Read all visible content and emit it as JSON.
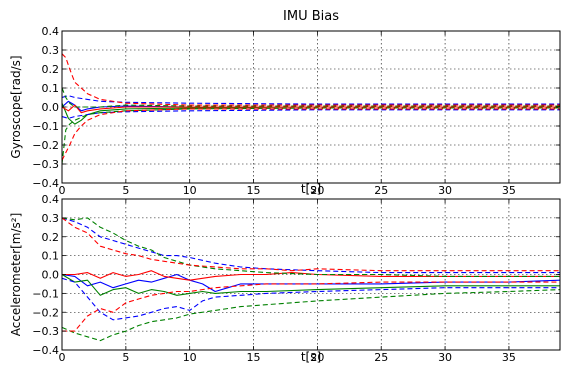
{
  "figure": {
    "title": "IMU Bias"
  },
  "colors": {
    "x_axis": "#0000ff",
    "y_axis": "#008000",
    "z_axis": "#ff0000",
    "frame": "#000000",
    "grid": "#000000"
  },
  "chart_data": [
    {
      "type": "line",
      "title": "IMU Bias",
      "xlabel": "t[s]",
      "ylabel": "Gyroscope[rad/s]",
      "xlim": [
        0,
        39
      ],
      "ylim": [
        -0.4,
        0.4
      ],
      "xticks": [
        0,
        5,
        10,
        15,
        20,
        25,
        30,
        35
      ],
      "yticks": [
        -0.4,
        -0.3,
        -0.2,
        -0.1,
        0.0,
        0.1,
        0.2,
        0.3,
        0.4
      ],
      "ytick_labels": [
        "−0.4",
        "−0.3",
        "−0.2",
        "−0.1",
        "0.0",
        "0.1",
        "0.2",
        "0.3",
        "0.4"
      ],
      "grid": true,
      "legend": "none",
      "series": [
        {
          "color": "#0000ff",
          "style": "solid",
          "x": [
            0,
            0.5,
            1,
            1.5,
            2,
            3,
            5,
            10,
            20,
            39
          ],
          "y": [
            0.0,
            0.03,
            0.01,
            -0.02,
            -0.01,
            0.0,
            0.005,
            0.0,
            0.0,
            0.0
          ]
        },
        {
          "color": "#008000",
          "style": "solid",
          "x": [
            0,
            0.5,
            1,
            1.5,
            2,
            3,
            5,
            10,
            20,
            39
          ],
          "y": [
            0.02,
            -0.06,
            -0.09,
            -0.07,
            -0.04,
            -0.02,
            -0.01,
            -0.005,
            0.0,
            0.0
          ]
        },
        {
          "color": "#ff0000",
          "style": "solid",
          "x": [
            0,
            0.5,
            1,
            1.5,
            2,
            3,
            5,
            10,
            20,
            39
          ],
          "y": [
            0.0,
            -0.02,
            0.01,
            -0.03,
            -0.02,
            -0.01,
            0.0,
            0.0,
            0.0,
            0.0
          ]
        },
        {
          "color": "#0000ff",
          "style": "dashed",
          "x": [
            0,
            0.5,
            1,
            2,
            3,
            5,
            10,
            20,
            39
          ],
          "y": [
            0.05,
            0.06,
            0.05,
            0.04,
            0.03,
            0.025,
            0.02,
            0.015,
            0.015
          ]
        },
        {
          "color": "#0000ff",
          "style": "dashed",
          "x": [
            0,
            0.5,
            1,
            2,
            3,
            5,
            10,
            20,
            39
          ],
          "y": [
            -0.05,
            -0.06,
            -0.05,
            -0.04,
            -0.03,
            -0.025,
            -0.02,
            -0.015,
            -0.015
          ]
        },
        {
          "color": "#008000",
          "style": "dashed",
          "x": [
            0,
            0.3,
            0.6,
            1,
            2,
            3,
            5,
            10,
            20,
            39
          ],
          "y": [
            0.1,
            0.05,
            0.02,
            0.0,
            0.0,
            0.0,
            0.01,
            0.005,
            0.005,
            0.005
          ]
        },
        {
          "color": "#008000",
          "style": "dashed",
          "x": [
            0,
            0.3,
            0.6,
            1,
            2,
            3,
            5,
            10,
            20,
            39
          ],
          "y": [
            -0.3,
            -0.12,
            -0.09,
            -0.07,
            -0.04,
            -0.03,
            -0.02,
            -0.01,
            -0.005,
            -0.005
          ]
        },
        {
          "color": "#ff0000",
          "style": "dashed",
          "x": [
            0,
            0.3,
            0.6,
            1,
            1.5,
            2,
            3,
            5,
            10,
            20,
            39
          ],
          "y": [
            0.28,
            0.26,
            0.2,
            0.13,
            0.1,
            0.07,
            0.04,
            0.02,
            0.01,
            0.01,
            0.01
          ]
        },
        {
          "color": "#ff0000",
          "style": "dashed",
          "x": [
            0,
            0.3,
            0.6,
            1,
            1.5,
            2,
            3,
            5,
            10,
            20,
            39
          ],
          "y": [
            -0.28,
            -0.24,
            -0.2,
            -0.14,
            -0.1,
            -0.07,
            -0.04,
            -0.02,
            -0.01,
            -0.01,
            -0.01
          ]
        }
      ]
    },
    {
      "type": "line",
      "xlabel": "t[s]",
      "ylabel": "Accelerometer[m/s²]",
      "xlim": [
        0,
        39
      ],
      "ylim": [
        -0.4,
        0.4
      ],
      "xticks": [
        0,
        5,
        10,
        15,
        20,
        25,
        30,
        35
      ],
      "yticks": [
        -0.4,
        -0.3,
        -0.2,
        -0.1,
        0.0,
        0.1,
        0.2,
        0.3,
        0.4
      ],
      "ytick_labels": [
        "−0.4",
        "−0.3",
        "−0.2",
        "−0.1",
        "0.0",
        "0.1",
        "0.2",
        "0.3",
        "0.4"
      ],
      "grid": true,
      "legend": "none",
      "series": [
        {
          "color": "#0000ff",
          "style": "solid",
          "x": [
            0,
            1,
            2,
            3,
            4,
            5,
            6,
            7,
            8,
            9,
            10,
            11,
            12,
            13,
            14,
            16,
            18,
            20,
            25,
            30,
            35,
            39
          ],
          "y": [
            0.0,
            -0.01,
            -0.06,
            -0.04,
            -0.07,
            -0.05,
            -0.03,
            -0.04,
            -0.02,
            0.0,
            -0.03,
            -0.05,
            -0.09,
            -0.07,
            -0.05,
            -0.05,
            -0.05,
            -0.05,
            -0.05,
            -0.04,
            -0.04,
            -0.03
          ]
        },
        {
          "color": "#008000",
          "style": "solid",
          "x": [
            0,
            1,
            2,
            3,
            4,
            5,
            6,
            7,
            8,
            9,
            10,
            11,
            12,
            14,
            16,
            20,
            25,
            30,
            35,
            39
          ],
          "y": [
            0.0,
            -0.04,
            -0.03,
            -0.11,
            -0.08,
            -0.07,
            -0.1,
            -0.08,
            -0.09,
            -0.11,
            -0.1,
            -0.09,
            -0.1,
            -0.09,
            -0.09,
            -0.08,
            -0.07,
            -0.06,
            -0.06,
            -0.06
          ]
        },
        {
          "color": "#ff0000",
          "style": "solid",
          "x": [
            0,
            1,
            2,
            3,
            4,
            5,
            6,
            7,
            8,
            9,
            10,
            11,
            12,
            14,
            16,
            18,
            20,
            25,
            30,
            35,
            39
          ],
          "y": [
            0.0,
            0.0,
            0.01,
            -0.02,
            0.01,
            -0.01,
            0.0,
            0.02,
            -0.01,
            -0.02,
            -0.03,
            -0.02,
            -0.01,
            0.0,
            0.0,
            0.01,
            0.0,
            -0.01,
            -0.01,
            -0.01,
            -0.01
          ]
        },
        {
          "color": "#0000ff",
          "style": "dashed",
          "x": [
            0,
            1,
            2,
            3,
            4,
            5,
            6,
            7,
            8,
            9,
            10,
            12,
            14,
            16,
            20,
            25,
            30,
            35,
            39
          ],
          "y": [
            0.3,
            0.28,
            0.25,
            0.2,
            0.18,
            0.16,
            0.14,
            0.12,
            0.1,
            0.1,
            0.09,
            0.06,
            0.04,
            0.03,
            0.02,
            0.01,
            0.01,
            0.01,
            0.01
          ]
        },
        {
          "color": "#0000ff",
          "style": "dashed",
          "x": [
            0,
            1,
            2,
            3,
            4,
            5,
            6,
            7,
            8,
            9,
            10,
            11,
            12,
            14,
            16,
            20,
            25,
            30,
            35,
            39
          ],
          "y": [
            -0.02,
            -0.04,
            -0.12,
            -0.2,
            -0.24,
            -0.23,
            -0.22,
            -0.2,
            -0.18,
            -0.17,
            -0.19,
            -0.14,
            -0.12,
            -0.11,
            -0.1,
            -0.09,
            -0.08,
            -0.07,
            -0.07,
            -0.07
          ]
        },
        {
          "color": "#008000",
          "style": "dashed",
          "x": [
            0,
            1,
            2,
            3,
            4,
            5,
            6,
            7,
            8,
            9,
            10,
            12,
            14,
            16,
            20,
            25,
            30,
            35,
            39
          ],
          "y": [
            0.3,
            0.29,
            0.3,
            0.25,
            0.22,
            0.18,
            0.15,
            0.13,
            0.09,
            0.07,
            0.05,
            0.03,
            0.02,
            0.01,
            0.0,
            0.0,
            -0.01,
            -0.01,
            -0.01
          ]
        },
        {
          "color": "#008000",
          "style": "dashed",
          "x": [
            0,
            1,
            2,
            3,
            4,
            5,
            6,
            7,
            8,
            9,
            10,
            12,
            14,
            16,
            20,
            25,
            30,
            35,
            39
          ],
          "y": [
            -0.28,
            -0.31,
            -0.33,
            -0.35,
            -0.32,
            -0.3,
            -0.27,
            -0.25,
            -0.24,
            -0.23,
            -0.21,
            -0.19,
            -0.17,
            -0.16,
            -0.14,
            -0.12,
            -0.1,
            -0.09,
            -0.08
          ]
        },
        {
          "color": "#ff0000",
          "style": "dashed",
          "x": [
            0,
            1,
            2,
            3,
            4,
            5,
            6,
            7,
            8,
            9,
            10,
            12,
            14,
            16,
            18,
            20,
            25,
            30,
            35,
            39
          ],
          "y": [
            0.3,
            0.25,
            0.22,
            0.15,
            0.13,
            0.11,
            0.1,
            0.08,
            0.07,
            0.06,
            0.05,
            0.04,
            0.03,
            0.03,
            0.02,
            0.03,
            0.02,
            0.02,
            0.02,
            0.02
          ]
        },
        {
          "color": "#ff0000",
          "style": "dashed",
          "x": [
            0,
            1,
            2,
            3,
            4,
            5,
            6,
            7,
            8,
            9,
            10,
            12,
            14,
            16,
            20,
            25,
            30,
            35,
            39
          ],
          "y": [
            -0.3,
            -0.3,
            -0.22,
            -0.18,
            -0.2,
            -0.15,
            -0.13,
            -0.11,
            -0.1,
            -0.09,
            -0.09,
            -0.07,
            -0.06,
            -0.05,
            -0.05,
            -0.04,
            -0.04,
            -0.04,
            -0.04
          ]
        }
      ]
    }
  ]
}
